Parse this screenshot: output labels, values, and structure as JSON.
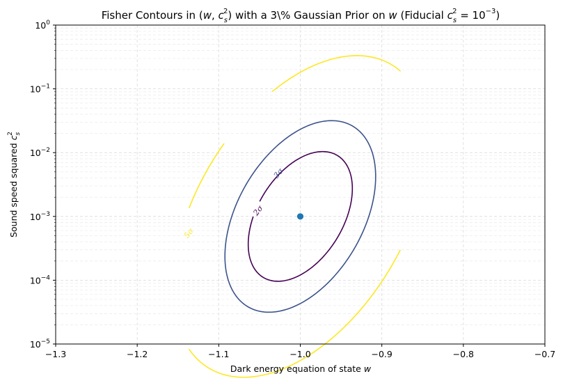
{
  "chart_data": {
    "type": "line",
    "title": "Fisher Contours in (w, c_s^2) with a 3\\% Gaussian Prior on w (Fiducial c_s^2 = 10^-3)",
    "title_parts": {
      "prefix": "Fisher Contours in (",
      "w": "w",
      "comma": ", ",
      "cs": "c",
      "cs_sub": "s",
      "cs_sup": "2",
      "mid": ") with a 3\\% Gaussian Prior on ",
      "w2": "w",
      "fid_open": " (Fiducial ",
      "fid_cs": "c",
      "fid_sub": "s",
      "fid_sup": "2",
      "fid_eq": " = 10",
      "fid_exp": "−3",
      "fid_close": ")"
    },
    "xlabel": "Dark energy equation of state",
    "xlabel_var": "w",
    "ylabel": "Sound speed squared",
    "ylabel_var": "c",
    "ylabel_sub": "s",
    "ylabel_sup": "2",
    "x_scale": "linear",
    "y_scale": "log",
    "xlim": [
      -1.3,
      -0.7
    ],
    "ylim": [
      1e-05,
      1
    ],
    "x_ticks": [
      -1.3,
      -1.2,
      -1.1,
      -1.0,
      -0.9,
      -0.8,
      -0.7
    ],
    "x_tick_labels": [
      "−1.3",
      "−1.2",
      "−1.1",
      "−1.0",
      "−0.9",
      "−0.8",
      "−0.7"
    ],
    "y_ticks": [
      1e-05,
      0.0001,
      0.001,
      0.01,
      0.1,
      1
    ],
    "y_tick_labels": [
      {
        "base": "10",
        "exp": "−5"
      },
      {
        "base": "10",
        "exp": "−4"
      },
      {
        "base": "10",
        "exp": "−3"
      },
      {
        "base": "10",
        "exp": "−2"
      },
      {
        "base": "10",
        "exp": "−1"
      },
      {
        "base": "10",
        "exp": "0"
      }
    ],
    "grid": true,
    "grid_style": "dashed",
    "fiducial": {
      "w": -1.0,
      "cs2": 0.001,
      "color": "#1f77b4"
    },
    "contours": [
      {
        "label": "2σ",
        "level": 2,
        "color": "#440154",
        "closed": true,
        "center_w": -1.0,
        "center_log10_cs2": -3.0,
        "semi_major": 0.072,
        "semi_minor": 0.0445,
        "angle_deg": 36,
        "label_at": [
          -1.052,
          0.00125
        ]
      },
      {
        "label": "3σ",
        "level": 3,
        "color": "#3b528b",
        "closed": true,
        "center_w": -1.0,
        "center_log10_cs2": -3.0,
        "semi_major": 0.1045,
        "semi_minor": 0.066,
        "angle_deg": 37,
        "label_at": [
          -1.027,
          0.0048
        ]
      },
      {
        "label": "5σ",
        "level": 5,
        "color": "#fde725",
        "closed": false,
        "center_w": -1.0,
        "center_log10_cs2": -3.0,
        "semi_major": 0.178,
        "semi_minor": 0.1085,
        "angle_deg": 37,
        "label_at": [
          -1.137,
          0.00055
        ]
      }
    ]
  }
}
